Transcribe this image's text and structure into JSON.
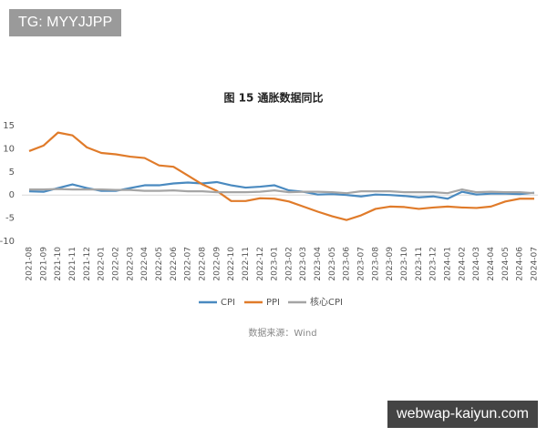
{
  "watermarks": [
    "TG: MYYJJPP",
    "webwap-kaiyun.com"
  ],
  "chart_data": {
    "type": "line",
    "title": "图 15 通胀数据同比",
    "source": "数据来源：Wind",
    "categories": [
      "2021-08",
      "2021-09",
      "2021-10",
      "2021-11",
      "2021-12",
      "2022-01",
      "2022-02",
      "2022-03",
      "2022-04",
      "2022-05",
      "2022-06",
      "2022-07",
      "2022-08",
      "2022-09",
      "2022-10",
      "2022-11",
      "2022-12",
      "2023-01",
      "2023-02",
      "2023-03",
      "2023-04",
      "2023-05",
      "2023-06",
      "2023-07",
      "2023-08",
      "2023-09",
      "2023-10",
      "2023-11",
      "2023-12",
      "2024-01",
      "2024-02",
      "2024-03",
      "2024-04",
      "2024-05",
      "2024-06",
      "2024-07"
    ],
    "series": [
      {
        "name": "CPI",
        "color": "#4a8ac0",
        "values": [
          0.8,
          0.7,
          1.5,
          2.3,
          1.5,
          0.9,
          0.9,
          1.5,
          2.1,
          2.1,
          2.5,
          2.7,
          2.5,
          2.8,
          2.1,
          1.6,
          1.8,
          2.1,
          1.0,
          0.7,
          0.1,
          0.2,
          0.0,
          -0.3,
          0.1,
          0.0,
          -0.2,
          -0.5,
          -0.3,
          -0.8,
          0.7,
          0.1,
          0.3,
          0.3,
          0.2,
          0.5
        ]
      },
      {
        "name": "PPI",
        "color": "#e07b2a",
        "values": [
          9.5,
          10.7,
          13.5,
          12.9,
          10.3,
          9.1,
          8.8,
          8.3,
          8.0,
          6.4,
          6.1,
          4.2,
          2.3,
          0.9,
          -1.3,
          -1.3,
          -0.7,
          -0.8,
          -1.4,
          -2.5,
          -3.6,
          -4.6,
          -5.4,
          -4.4,
          -3.0,
          -2.5,
          -2.6,
          -3.0,
          -2.7,
          -2.5,
          -2.7,
          -2.8,
          -2.5,
          -1.4,
          -0.8,
          -0.8
        ]
      },
      {
        "name": "核心CPI",
        "color": "#a5a5a5",
        "values": [
          1.2,
          1.2,
          1.3,
          1.2,
          1.2,
          1.2,
          1.1,
          1.1,
          0.9,
          0.9,
          1.0,
          0.8,
          0.8,
          0.6,
          0.6,
          0.6,
          0.7,
          1.0,
          0.6,
          0.7,
          0.7,
          0.6,
          0.4,
          0.8,
          0.8,
          0.8,
          0.6,
          0.6,
          0.6,
          0.4,
          1.2,
          0.6,
          0.7,
          0.6,
          0.6,
          0.4
        ]
      }
    ],
    "ylim": [
      -10,
      15
    ],
    "yticks": [
      -10,
      -5,
      0,
      5,
      10,
      15
    ],
    "grid": false
  }
}
